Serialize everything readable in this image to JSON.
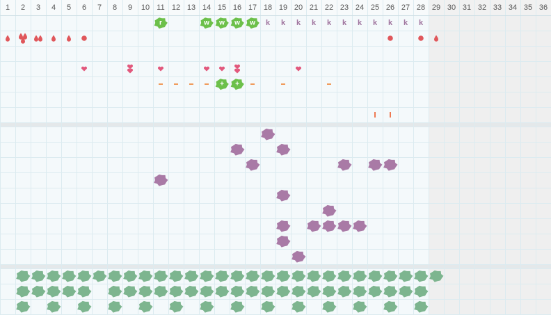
{
  "header": {
    "days": [
      1,
      2,
      3,
      4,
      5,
      6,
      7,
      8,
      9,
      10,
      11,
      12,
      13,
      14,
      15,
      16,
      17,
      18,
      19,
      20,
      21,
      22,
      23,
      24,
      25,
      26,
      27,
      28,
      29,
      30,
      31,
      32,
      33,
      34,
      35,
      36
    ],
    "inactive_from": 29
  },
  "styles": {
    "badge": "#6cc04a",
    "letter": "#a0759f",
    "drop": "#e0575b",
    "dot": "#e0575b",
    "heart": "#e2587c",
    "dash": "#f09a5a",
    "bar": "#ee7a52"
  },
  "tracker": {
    "rows": [
      [
        {
          "day": 11,
          "icon": "badge",
          "text": "r"
        },
        {
          "day": 14,
          "icon": "badge",
          "text": "w"
        },
        {
          "day": 15,
          "icon": "badge",
          "text": "w"
        },
        {
          "day": 16,
          "icon": "badge",
          "text": "w"
        },
        {
          "day": 17,
          "icon": "badge",
          "text": "w"
        },
        {
          "day": 18,
          "icon": "letter",
          "text": "k"
        },
        {
          "day": 19,
          "icon": "letter",
          "text": "k"
        },
        {
          "day": 20,
          "icon": "letter",
          "text": "k"
        },
        {
          "day": 21,
          "icon": "letter",
          "text": "k"
        },
        {
          "day": 22,
          "icon": "letter",
          "text": "k"
        },
        {
          "day": 23,
          "icon": "letter",
          "text": "k"
        },
        {
          "day": 24,
          "icon": "letter",
          "text": "k"
        },
        {
          "day": 25,
          "icon": "letter",
          "text": "k"
        },
        {
          "day": 26,
          "icon": "letter",
          "text": "k"
        },
        {
          "day": 27,
          "icon": "letter",
          "text": "k"
        },
        {
          "day": 28,
          "icon": "letter",
          "text": "k"
        }
      ],
      [
        {
          "day": 1,
          "icon": "drop",
          "count": 1
        },
        {
          "day": 2,
          "icon": "drop",
          "count": 3
        },
        {
          "day": 3,
          "icon": "drop",
          "count": 2
        },
        {
          "day": 4,
          "icon": "drop",
          "count": 1
        },
        {
          "day": 5,
          "icon": "drop",
          "count": 1
        },
        {
          "day": 6,
          "icon": "dot",
          "count": 1
        },
        {
          "day": 26,
          "icon": "dot",
          "count": 1
        },
        {
          "day": 28,
          "icon": "dot",
          "count": 1
        },
        {
          "day": 29,
          "icon": "drop",
          "count": 1
        }
      ],
      [],
      [
        {
          "day": 6,
          "icon": "heart",
          "count": 1
        },
        {
          "day": 9,
          "icon": "heart",
          "count": 2
        },
        {
          "day": 11,
          "icon": "heart",
          "count": 1
        },
        {
          "day": 14,
          "icon": "heart",
          "count": 1
        },
        {
          "day": 15,
          "icon": "heart",
          "count": 1
        },
        {
          "day": 16,
          "icon": "heart",
          "count": 2
        },
        {
          "day": 20,
          "icon": "heart",
          "count": 1
        }
      ],
      [
        {
          "day": 11,
          "icon": "dash"
        },
        {
          "day": 12,
          "icon": "dash"
        },
        {
          "day": 13,
          "icon": "dash"
        },
        {
          "day": 14,
          "icon": "dash"
        },
        {
          "day": 15,
          "icon": "badge",
          "text": "+"
        },
        {
          "day": 16,
          "icon": "badge",
          "text": "+"
        },
        {
          "day": 17,
          "icon": "dash"
        },
        {
          "day": 19,
          "icon": "dash"
        },
        {
          "day": 22,
          "icon": "dash"
        }
      ],
      [],
      [
        {
          "day": 25,
          "icon": "bar"
        },
        {
          "day": 26,
          "icon": "bar"
        }
      ]
    ]
  },
  "habits": [
    {
      "color": "#a97aa6",
      "rows": [
        [
          18
        ],
        [
          16,
          19
        ],
        [
          17,
          23,
          25,
          26
        ],
        [
          11
        ],
        [
          19
        ],
        [
          22
        ],
        [
          19,
          21,
          22,
          23,
          24
        ],
        [
          19
        ],
        [
          20
        ]
      ]
    },
    {
      "color": "#7db58f",
      "rows": [
        [
          2,
          3,
          4,
          5,
          6,
          7,
          8,
          9,
          10,
          11,
          12,
          13,
          14,
          15,
          16,
          17,
          18,
          19,
          20,
          21,
          22,
          23,
          24,
          25,
          26,
          27,
          28,
          29
        ],
        [
          2,
          3,
          4,
          5,
          6,
          8,
          9,
          10,
          11,
          12,
          13,
          14,
          15,
          16,
          17,
          18,
          19,
          20,
          21,
          22,
          23,
          24,
          25,
          26,
          27,
          28
        ],
        [
          2,
          4,
          6,
          8,
          10,
          12,
          14,
          16,
          18,
          20,
          22,
          24,
          26,
          28
        ]
      ]
    }
  ]
}
